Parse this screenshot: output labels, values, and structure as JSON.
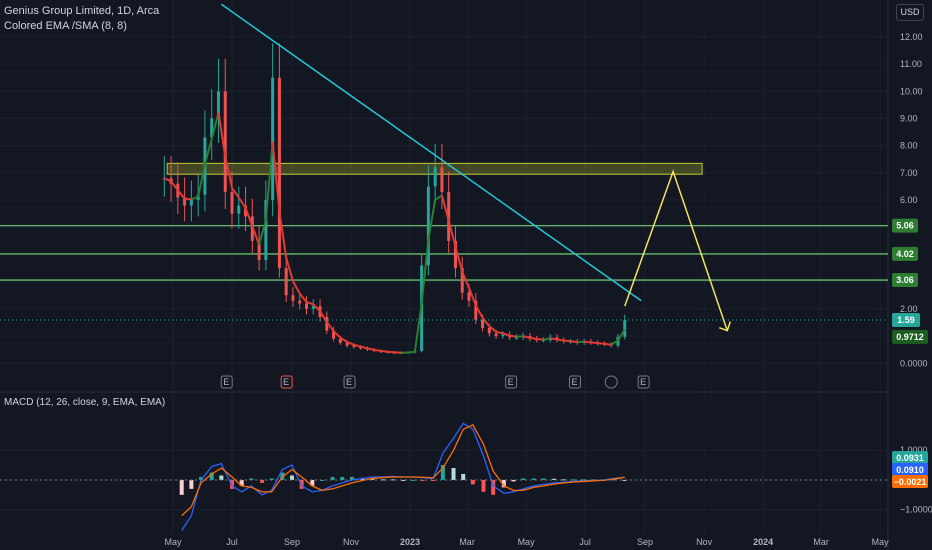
{
  "header": {
    "symbol_line": "Genius Group Limited, 1D, Arca",
    "indicator_line": "Colored EMA /SMA (8, 8)",
    "currency": "USD"
  },
  "macd_legend": "MACD (12, 26, close, 9, EMA, EMA)",
  "colors": {
    "background": "#131722",
    "grid": "#1c2030",
    "up": "#26a69a",
    "down": "#ef5350",
    "ema_up": "#2e7d32",
    "ema_down": "#e53935",
    "trendline": "#26c6da",
    "horizontal": "#66bb6a",
    "zone": "#c0ca33",
    "projection": "#f2e35d",
    "macd": "#2962ff",
    "signal": "#ff6d00"
  },
  "chart_data": [
    {
      "type": "line",
      "name": "price",
      "title": "Genius Group Limited, 1D, Arca",
      "x_ticks": [
        "May",
        "Jul",
        "Sep",
        "Nov",
        "2023",
        "Mar",
        "May",
        "Jul",
        "Sep",
        "Nov",
        "2024",
        "Mar",
        "May"
      ],
      "y_ticks": [
        "12.00",
        "11.00",
        "10.00",
        "9.00",
        "8.00",
        "7.00",
        "6.00",
        "5.00",
        "4.00",
        "3.00",
        "2.00",
        "1.00",
        "0.0000"
      ],
      "ylim": [
        -0.1,
        12.4
      ],
      "series": [
        {
          "values_role": "close",
          "x": [
            "2022-04-22",
            "2022-04-29",
            "2022-05-06",
            "2022-05-13",
            "2022-05-20",
            "2022-05-27",
            "2022-06-03",
            "2022-06-10",
            "2022-06-17",
            "2022-06-24",
            "2022-07-01",
            "2022-07-08",
            "2022-07-15",
            "2022-07-22",
            "2022-07-29",
            "2022-08-05",
            "2022-08-12",
            "2022-08-19",
            "2022-08-26",
            "2022-09-02",
            "2022-09-09",
            "2022-09-16",
            "2022-09-23",
            "2022-09-30",
            "2022-10-07",
            "2022-10-14",
            "2022-10-21",
            "2022-10-28",
            "2022-11-04",
            "2022-11-11",
            "2022-11-18",
            "2022-11-25",
            "2022-12-02",
            "2022-12-09",
            "2022-12-16",
            "2022-12-23",
            "2022-12-30",
            "2023-01-06",
            "2023-01-13",
            "2023-01-20",
            "2023-01-27",
            "2023-02-03",
            "2023-02-10",
            "2023-02-17",
            "2023-02-24",
            "2023-03-03",
            "2023-03-10",
            "2023-03-17",
            "2023-03-24",
            "2023-03-31",
            "2023-04-07",
            "2023-04-14",
            "2023-04-21",
            "2023-04-28",
            "2023-05-05",
            "2023-05-12",
            "2023-05-19",
            "2023-05-26",
            "2023-06-02",
            "2023-06-09",
            "2023-06-16",
            "2023-06-23",
            "2023-06-30",
            "2023-07-07",
            "2023-07-14",
            "2023-07-21",
            "2023-07-28",
            "2023-08-04",
            "2023-08-11"
          ],
          "values": [
            6.8,
            6.6,
            6.1,
            5.8,
            6.0,
            6.2,
            8.3,
            9.0,
            10.0,
            6.3,
            5.5,
            5.8,
            5.4,
            4.5,
            3.8,
            6.0,
            10.5,
            3.5,
            2.5,
            2.3,
            2.2,
            2.0,
            2.1,
            1.7,
            1.2,
            0.9,
            0.75,
            0.65,
            0.6,
            0.55,
            0.5,
            0.45,
            0.42,
            0.4,
            0.38,
            0.38,
            0.4,
            0.45,
            3.6,
            6.5,
            7.2,
            6.3,
            4.5,
            3.5,
            2.6,
            2.3,
            1.6,
            1.3,
            1.1,
            1.0,
            1.05,
            0.95,
            0.95,
            1.0,
            0.9,
            0.85,
            0.85,
            0.95,
            0.85,
            0.8,
            0.8,
            0.75,
            0.8,
            0.75,
            0.72,
            0.7,
            0.65,
            0.97,
            1.59
          ]
        }
      ],
      "annotations": {
        "horizontal_levels": [
          5.06,
          4.02,
          3.06
        ],
        "last_price": "1.59",
        "ema_value": "0.9712",
        "level_labels": [
          "5.06",
          "4.02",
          "3.06"
        ],
        "resistance_zone": [
          6.95,
          7.35
        ],
        "trendline": {
          "from": [
            "2022-06-20",
            13.2
          ],
          "to": [
            "2023-08-28",
            2.3
          ]
        },
        "projection": [
          [
            "2023-08-11",
            2.1
          ],
          [
            "2023-09-30",
            7.05
          ],
          [
            "2023-11-25",
            1.2
          ]
        ]
      }
    },
    {
      "type": "bar",
      "name": "MACD (12, 26, close, 9, EMA, EMA)",
      "y_ticks": [
        "1.0000",
        "0.0000",
        "−1.0000"
      ],
      "ylim": [
        -1.85,
        2.35
      ],
      "macd_line": [
        -1.7,
        -1.2,
        0.0,
        0.45,
        0.55,
        -0.2,
        -0.4,
        -0.2,
        -0.5,
        -0.35,
        0.35,
        0.5,
        -0.2,
        -0.4,
        -0.35,
        -0.2,
        -0.1,
        0.0,
        0.05,
        0.1,
        0.1,
        0.12,
        0.1,
        0.1,
        0.08,
        0.05,
        0.9,
        1.4,
        1.9,
        1.7,
        0.8,
        -0.2,
        -0.45,
        -0.4,
        -0.3,
        -0.2,
        -0.15,
        -0.1,
        -0.08,
        -0.05,
        -0.03,
        -0.02,
        0.0,
        0.05,
        0.09
      ],
      "signal_line": [
        -1.2,
        -0.9,
        -0.1,
        0.2,
        0.4,
        0.1,
        -0.2,
        -0.25,
        -0.4,
        -0.4,
        0.1,
        0.35,
        0.1,
        -0.2,
        -0.35,
        -0.3,
        -0.2,
        -0.1,
        -0.02,
        0.05,
        0.08,
        0.1,
        0.1,
        0.1,
        0.09,
        0.07,
        0.4,
        1.0,
        1.7,
        1.85,
        1.2,
        0.3,
        -0.2,
        -0.35,
        -0.35,
        -0.25,
        -0.2,
        -0.14,
        -0.1,
        -0.07,
        -0.05,
        -0.03,
        -0.01,
        0.03,
        0.09
      ],
      "values_readout": [
        "0.0931",
        "0.0910",
        "−0.0021"
      ]
    }
  ],
  "event_markers": [
    "E",
    "E",
    "E",
    "E",
    "E",
    "E"
  ]
}
